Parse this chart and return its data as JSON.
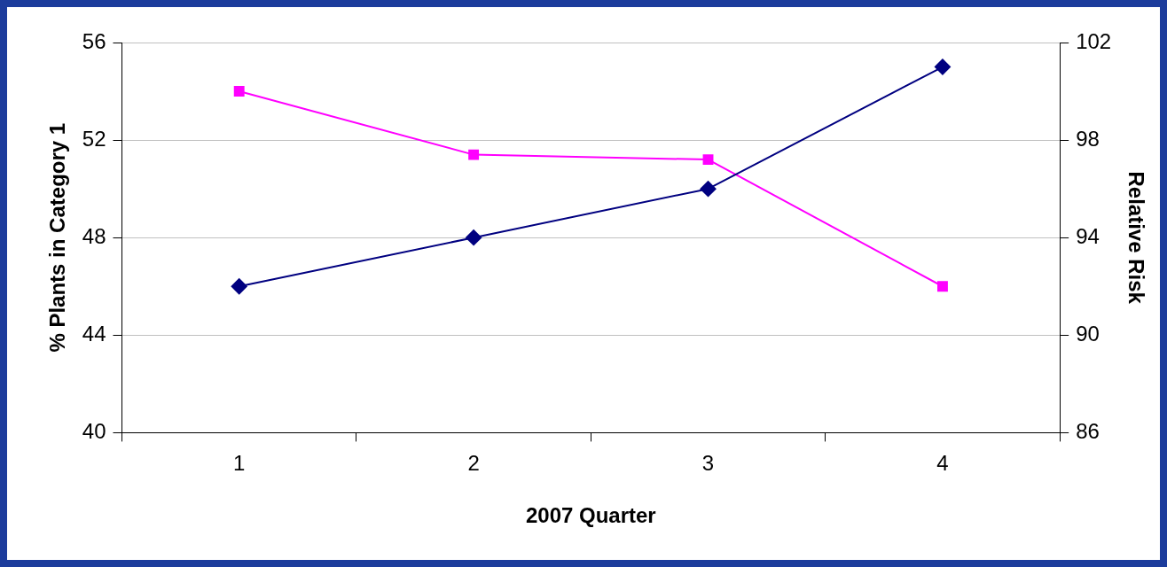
{
  "chart_data": {
    "type": "line",
    "xlabel": "2007 Quarter",
    "ylabel": "% Plants in Category 1",
    "y2label": "Relative Risk",
    "categories": [
      "1",
      "2",
      "3",
      "4"
    ],
    "series": [
      {
        "color": "#000080",
        "values": [
          46,
          48,
          50,
          55
        ],
        "marker": "diamond"
      },
      {
        "color": "#ff00ff",
        "values": [
          100,
          97.4,
          97.2,
          92
        ],
        "marker": "square",
        "axis": "y2"
      }
    ],
    "ylim": [
      40,
      56
    ],
    "yticks": [
      40,
      44,
      48,
      52,
      56
    ],
    "y2lim": [
      86,
      102
    ],
    "y2ticks": [
      86,
      90,
      94,
      98,
      102
    ],
    "grid": "y",
    "legend": false,
    "line_style": "solid"
  }
}
